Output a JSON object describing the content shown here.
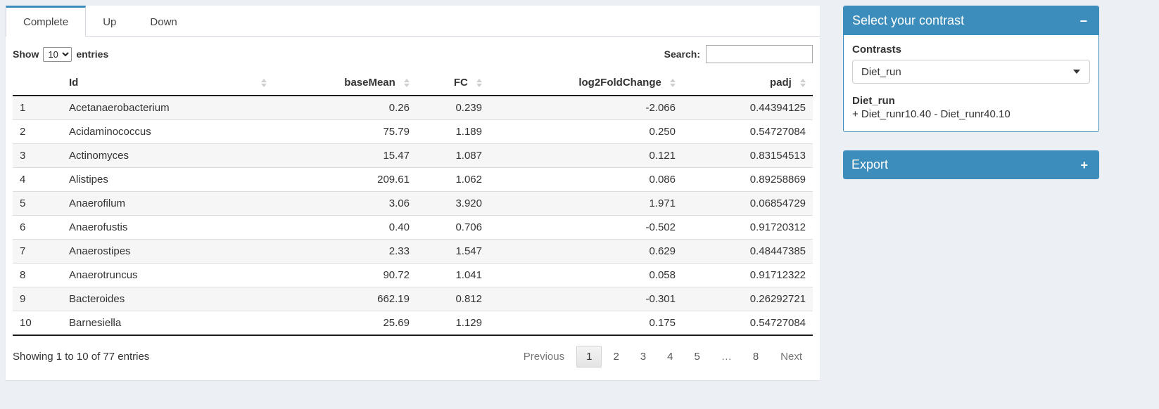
{
  "tabs": [
    {
      "label": "Complete",
      "active": true
    },
    {
      "label": "Up",
      "active": false
    },
    {
      "label": "Down",
      "active": false
    }
  ],
  "table_controls": {
    "show_label": "Show",
    "page_length": "10",
    "entries_label": "entries",
    "search_label": "Search:",
    "search_value": ""
  },
  "table": {
    "columns": {
      "id": "Id",
      "basemean": "baseMean",
      "fc": "FC",
      "log2fc": "log2FoldChange",
      "padj": "padj"
    },
    "rows": [
      {
        "n": "1",
        "id": "Acetanaerobacterium",
        "basemean": "0.26",
        "fc": "0.239",
        "log2fc": "-2.066",
        "padj": "0.44394125"
      },
      {
        "n": "2",
        "id": "Acidaminococcus",
        "basemean": "75.79",
        "fc": "1.189",
        "log2fc": "0.250",
        "padj": "0.54727084"
      },
      {
        "n": "3",
        "id": "Actinomyces",
        "basemean": "15.47",
        "fc": "1.087",
        "log2fc": "0.121",
        "padj": "0.83154513"
      },
      {
        "n": "4",
        "id": "Alistipes",
        "basemean": "209.61",
        "fc": "1.062",
        "log2fc": "0.086",
        "padj": "0.89258869"
      },
      {
        "n": "5",
        "id": "Anaerofilum",
        "basemean": "3.06",
        "fc": "3.920",
        "log2fc": "1.971",
        "padj": "0.06854729"
      },
      {
        "n": "6",
        "id": "Anaerofustis",
        "basemean": "0.40",
        "fc": "0.706",
        "log2fc": "-0.502",
        "padj": "0.91720312"
      },
      {
        "n": "7",
        "id": "Anaerostipes",
        "basemean": "2.33",
        "fc": "1.547",
        "log2fc": "0.629",
        "padj": "0.48447385"
      },
      {
        "n": "8",
        "id": "Anaerotruncus",
        "basemean": "90.72",
        "fc": "1.041",
        "log2fc": "0.058",
        "padj": "0.91712322"
      },
      {
        "n": "9",
        "id": "Bacteroides",
        "basemean": "662.19",
        "fc": "0.812",
        "log2fc": "-0.301",
        "padj": "0.26292721"
      },
      {
        "n": "10",
        "id": "Barnesiella",
        "basemean": "25.69",
        "fc": "1.129",
        "log2fc": "0.175",
        "padj": "0.54727084"
      }
    ]
  },
  "footer": {
    "info": "Showing 1 to 10 of 77 entries",
    "pagination": {
      "previous": "Previous",
      "pages": [
        "1",
        "2",
        "3",
        "4",
        "5",
        "…",
        "8"
      ],
      "active_page": "1",
      "ellipsis": "…",
      "next": "Next"
    }
  },
  "contrast_panel": {
    "title": "Select your contrast",
    "collapse_icon": "−",
    "contrasts_label": "Contrasts",
    "selected_contrast": "Diet_run",
    "contrast_name": "Diet_run",
    "contrast_formula": "+ Diet_runr10.40 - Diet_runr40.10"
  },
  "export_panel": {
    "title": "Export",
    "expand_icon": "+"
  },
  "colors": {
    "primary": "#3c8dbc",
    "page_bg": "#ecf0f5",
    "stripe": "#f6f6f6"
  }
}
